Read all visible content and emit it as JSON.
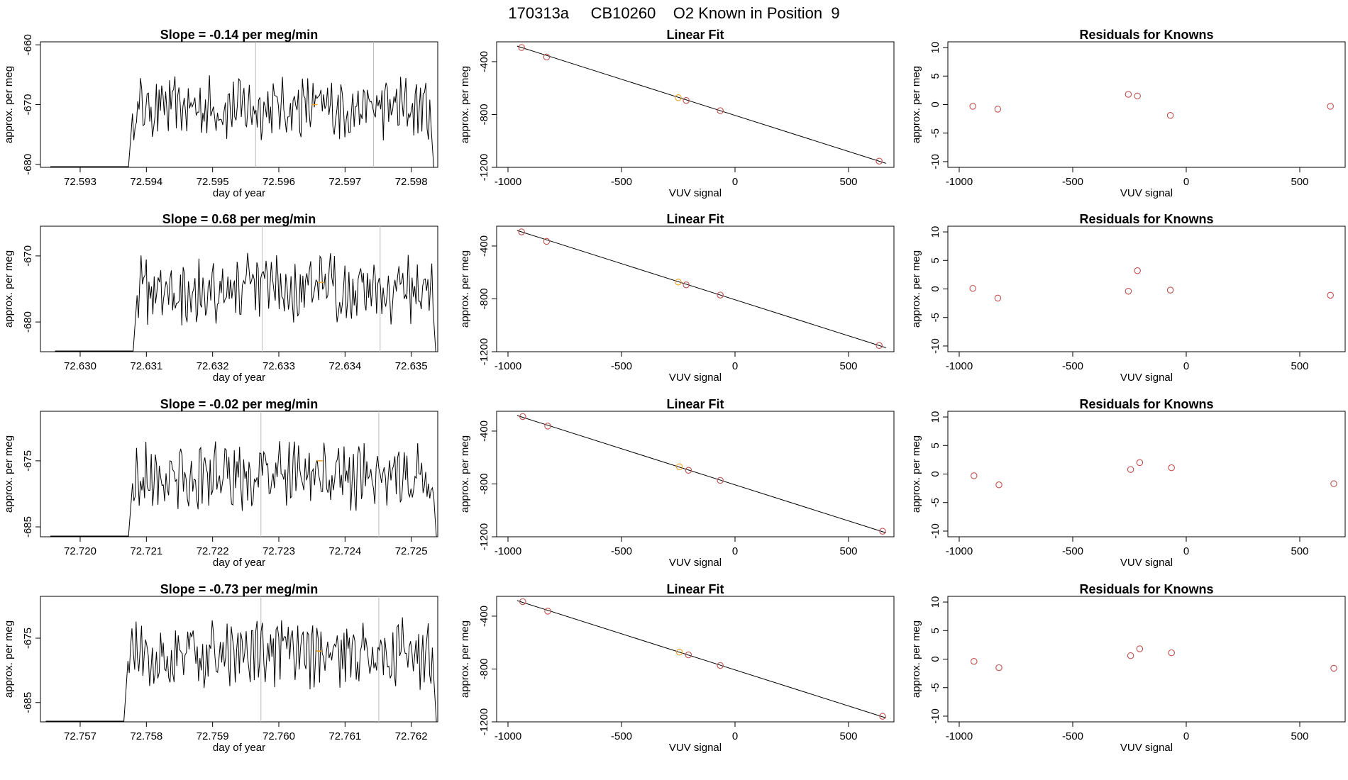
{
  "page_title": "170313a     CB10260    O2 Known in Position  9",
  "colors": {
    "known": "#c0504d",
    "current": "#f0a020",
    "vline": "#bbbbbb",
    "line": "#000000"
  },
  "chart_data": [
    {
      "type": "line",
      "slope_label": "Slope =  -0.14  per meg/min",
      "xlabel": "day of year",
      "ylabel": "approx. per meg",
      "xlim": [
        72.5924,
        72.5984
      ],
      "ylim": [
        -680.5,
        -659.5
      ],
      "xticks": [
        72.593,
        72.594,
        72.595,
        72.596,
        72.597,
        72.598
      ],
      "xtick_labels": [
        "72.593",
        "72.594",
        "72.595",
        "72.596",
        "72.597",
        "72.598"
      ],
      "yticks": [
        -660,
        -670,
        -680
      ],
      "ytick_labels": [
        "-660",
        "-670",
        "-680"
      ],
      "vlines": [
        72.59565,
        72.59743
      ],
      "trace_start": 72.59375,
      "trace_end": 72.59834,
      "trace_mean": -670.5,
      "trace_amp": 4.2,
      "marker": {
        "x": 72.59654,
        "y": -670
      }
    },
    {
      "type": "line",
      "slope_label": "Slope =  0.68  per meg/min",
      "xlabel": "day of year",
      "ylabel": "approx. per meg",
      "xlim": [
        72.6294,
        72.6354
      ],
      "ylim": [
        -684.5,
        -665.5
      ],
      "xticks": [
        72.63,
        72.631,
        72.632,
        72.633,
        72.634,
        72.635
      ],
      "xtick_labels": [
        "72.630",
        "72.631",
        "72.632",
        "72.633",
        "72.634",
        "72.635"
      ],
      "yticks": [
        -670,
        -680
      ],
      "ytick_labels": [
        "-670",
        "-680"
      ],
      "vlines": [
        72.63275,
        72.63453
      ],
      "trace_start": 72.63082,
      "trace_end": 72.63537,
      "trace_mean": -675,
      "trace_amp": 4.0,
      "marker": {
        "x": 72.63364,
        "y": -674
      }
    },
    {
      "type": "line",
      "slope_label": "Slope =  -0.02  per meg/min",
      "xlabel": "day of year",
      "ylabel": "approx. per meg",
      "xlim": [
        72.7194,
        72.7254
      ],
      "ylim": [
        -686.5,
        -667.5
      ],
      "xticks": [
        72.72,
        72.721,
        72.722,
        72.723,
        72.724,
        72.725
      ],
      "xtick_labels": [
        "72.720",
        "72.721",
        "72.722",
        "72.723",
        "72.724",
        "72.725"
      ],
      "yticks": [
        -675,
        -685
      ],
      "ytick_labels": [
        "-675",
        "-685"
      ],
      "vlines": [
        72.72273,
        72.72451
      ],
      "trace_start": 72.72075,
      "trace_end": 72.72538,
      "trace_mean": -677.5,
      "trace_amp": 4.0,
      "marker": {
        "x": 72.72362,
        "y": -675
      }
    },
    {
      "type": "line",
      "slope_label": "Slope =  -0.73  per meg/min",
      "xlabel": "day of year",
      "ylabel": "approx. per meg",
      "xlim": [
        72.7564,
        72.7624
      ],
      "ylim": [
        -688,
        -668.5
      ],
      "xticks": [
        72.757,
        72.758,
        72.759,
        72.76,
        72.761,
        72.762
      ],
      "xtick_labels": [
        "72.757",
        "72.758",
        "72.759",
        "72.760",
        "72.761",
        "72.762"
      ],
      "yticks": [
        -675,
        -685
      ],
      "ytick_labels": [
        "-675",
        "-685"
      ],
      "vlines": [
        72.75973,
        72.76151
      ],
      "trace_start": 72.75768,
      "trace_end": 72.76238,
      "trace_mean": -677.5,
      "trace_amp": 4.2,
      "marker": {
        "x": 72.76061,
        "y": -677
      }
    },
    {
      "type": "scatter",
      "title": "Linear Fit",
      "xlabel": "VUV signal",
      "ylabel": "approx. per meg",
      "xlim": [
        -1050,
        700
      ],
      "ylim": [
        -1200,
        -250
      ],
      "xticks": [
        -1000,
        -500,
        0,
        500
      ],
      "xtick_labels": [
        "-1000",
        "-500",
        "0",
        "500"
      ],
      "yticks": [
        -400,
        -800,
        -1200
      ],
      "ytick_labels": [
        "-400",
        "-800",
        "-1200"
      ],
      "points_x": [
        -940,
        -830,
        -250,
        -215,
        -65,
        635
      ],
      "points_y": [
        -293,
        -365,
        -673,
        -694,
        -771,
        -1153
      ],
      "highlight": 2,
      "fit": [
        [
          -960,
          -282
        ],
        [
          665,
          -1170
        ]
      ]
    },
    {
      "type": "scatter",
      "title": "Linear Fit",
      "xlabel": "VUV signal",
      "ylabel": "approx. per meg",
      "xlim": [
        -1050,
        700
      ],
      "ylim": [
        -1200,
        -250
      ],
      "xticks": [
        -1000,
        -500,
        0,
        500
      ],
      "xtick_labels": [
        "-1000",
        "-500",
        "0",
        "500"
      ],
      "yticks": [
        -400,
        -800,
        -1200
      ],
      "ytick_labels": [
        "-400",
        "-800",
        "-1200"
      ],
      "points_x": [
        -940,
        -830,
        -250,
        -215,
        -65,
        635
      ],
      "points_y": [
        -293,
        -365,
        -673,
        -694,
        -771,
        -1153
      ],
      "highlight": 2,
      "fit": [
        [
          -960,
          -282
        ],
        [
          665,
          -1170
        ]
      ]
    },
    {
      "type": "scatter",
      "title": "Linear Fit",
      "xlabel": "VUV signal",
      "ylabel": "approx. per meg",
      "xlim": [
        -1050,
        700
      ],
      "ylim": [
        -1200,
        -250
      ],
      "xticks": [
        -1000,
        -500,
        0,
        500
      ],
      "xtick_labels": [
        "-1000",
        "-500",
        "0",
        "500"
      ],
      "yticks": [
        -400,
        -800,
        -1200
      ],
      "ytick_labels": [
        "-400",
        "-800",
        "-1200"
      ],
      "points_x": [
        -935,
        -825,
        -245,
        -205,
        -65,
        650
      ],
      "points_y": [
        -290,
        -362,
        -670,
        -697,
        -773,
        -1158
      ],
      "highlight": 2,
      "fit": [
        [
          -960,
          -282
        ],
        [
          665,
          -1170
        ]
      ]
    },
    {
      "type": "scatter",
      "title": "Linear Fit",
      "xlabel": "VUV signal",
      "ylabel": "approx. per meg",
      "xlim": [
        -1050,
        700
      ],
      "ylim": [
        -1200,
        -250
      ],
      "xticks": [
        -1000,
        -500,
        0,
        500
      ],
      "xtick_labels": [
        "-1000",
        "-500",
        "0",
        "500"
      ],
      "yticks": [
        -400,
        -800,
        -1200
      ],
      "ytick_labels": [
        "-400",
        "-800",
        "-1200"
      ],
      "points_x": [
        -935,
        -825,
        -245,
        -205,
        -65,
        650
      ],
      "points_y": [
        -290,
        -362,
        -672,
        -693,
        -773,
        -1158
      ],
      "highlight": 2,
      "fit": [
        [
          -960,
          -282
        ],
        [
          665,
          -1170
        ]
      ]
    },
    {
      "type": "scatter",
      "title": "Residuals for Knowns",
      "xlabel": "VUV signal",
      "ylabel": "approx. per meg",
      "xlim": [
        -1050,
        700
      ],
      "ylim": [
        -11,
        11
      ],
      "xticks": [
        -1000,
        -500,
        0,
        500
      ],
      "xtick_labels": [
        "-1000",
        "-500",
        "0",
        "500"
      ],
      "yticks": [
        10,
        5,
        0,
        -5,
        -10
      ],
      "ytick_labels": [
        "10",
        "5",
        "0",
        "-5",
        "-10"
      ],
      "points_x": [
        -940,
        -830,
        -255,
        -215,
        -70,
        635
      ],
      "points_y": [
        -0.3,
        -0.8,
        1.8,
        1.5,
        -1.9,
        -0.3
      ]
    },
    {
      "type": "scatter",
      "title": "Residuals for Knowns",
      "xlabel": "VUV signal",
      "ylabel": "approx. per meg",
      "xlim": [
        -1050,
        700
      ],
      "ylim": [
        -11,
        11
      ],
      "xticks": [
        -1000,
        -500,
        0,
        500
      ],
      "xtick_labels": [
        "-1000",
        "-500",
        "0",
        "500"
      ],
      "yticks": [
        10,
        5,
        0,
        -5,
        -10
      ],
      "ytick_labels": [
        "10",
        "5",
        "0",
        "-5",
        "-10"
      ],
      "points_x": [
        -940,
        -830,
        -255,
        -215,
        -70,
        635
      ],
      "points_y": [
        0.1,
        -1.6,
        -0.4,
        3.2,
        -0.2,
        -1.1
      ]
    },
    {
      "type": "scatter",
      "title": "Residuals for Knowns",
      "xlabel": "VUV signal",
      "ylabel": "approx. per meg",
      "xlim": [
        -1050,
        700
      ],
      "ylim": [
        -11,
        11
      ],
      "xticks": [
        -1000,
        -500,
        0,
        500
      ],
      "xtick_labels": [
        "-1000",
        "-500",
        "0",
        "500"
      ],
      "yticks": [
        10,
        5,
        0,
        -5,
        -10
      ],
      "ytick_labels": [
        "10",
        "5",
        "0",
        "-5",
        "-10"
      ],
      "points_x": [
        -935,
        -825,
        -245,
        -205,
        -65,
        650
      ],
      "points_y": [
        -0.3,
        -1.9,
        0.8,
        2.0,
        1.1,
        -1.7
      ]
    },
    {
      "type": "scatter",
      "title": "Residuals for Knowns",
      "xlabel": "VUV signal",
      "ylabel": "approx. per meg",
      "xlim": [
        -1050,
        700
      ],
      "ylim": [
        -11,
        11
      ],
      "xticks": [
        -1000,
        -500,
        0,
        500
      ],
      "xtick_labels": [
        "-1000",
        "-500",
        "0",
        "500"
      ],
      "yticks": [
        10,
        5,
        0,
        -5,
        -10
      ],
      "ytick_labels": [
        "10",
        "5",
        "0",
        "-5",
        "-10"
      ],
      "points_x": [
        -935,
        -825,
        -245,
        -205,
        -65,
        650
      ],
      "points_y": [
        -0.4,
        -1.5,
        0.6,
        1.8,
        1.1,
        -1.6
      ]
    }
  ]
}
